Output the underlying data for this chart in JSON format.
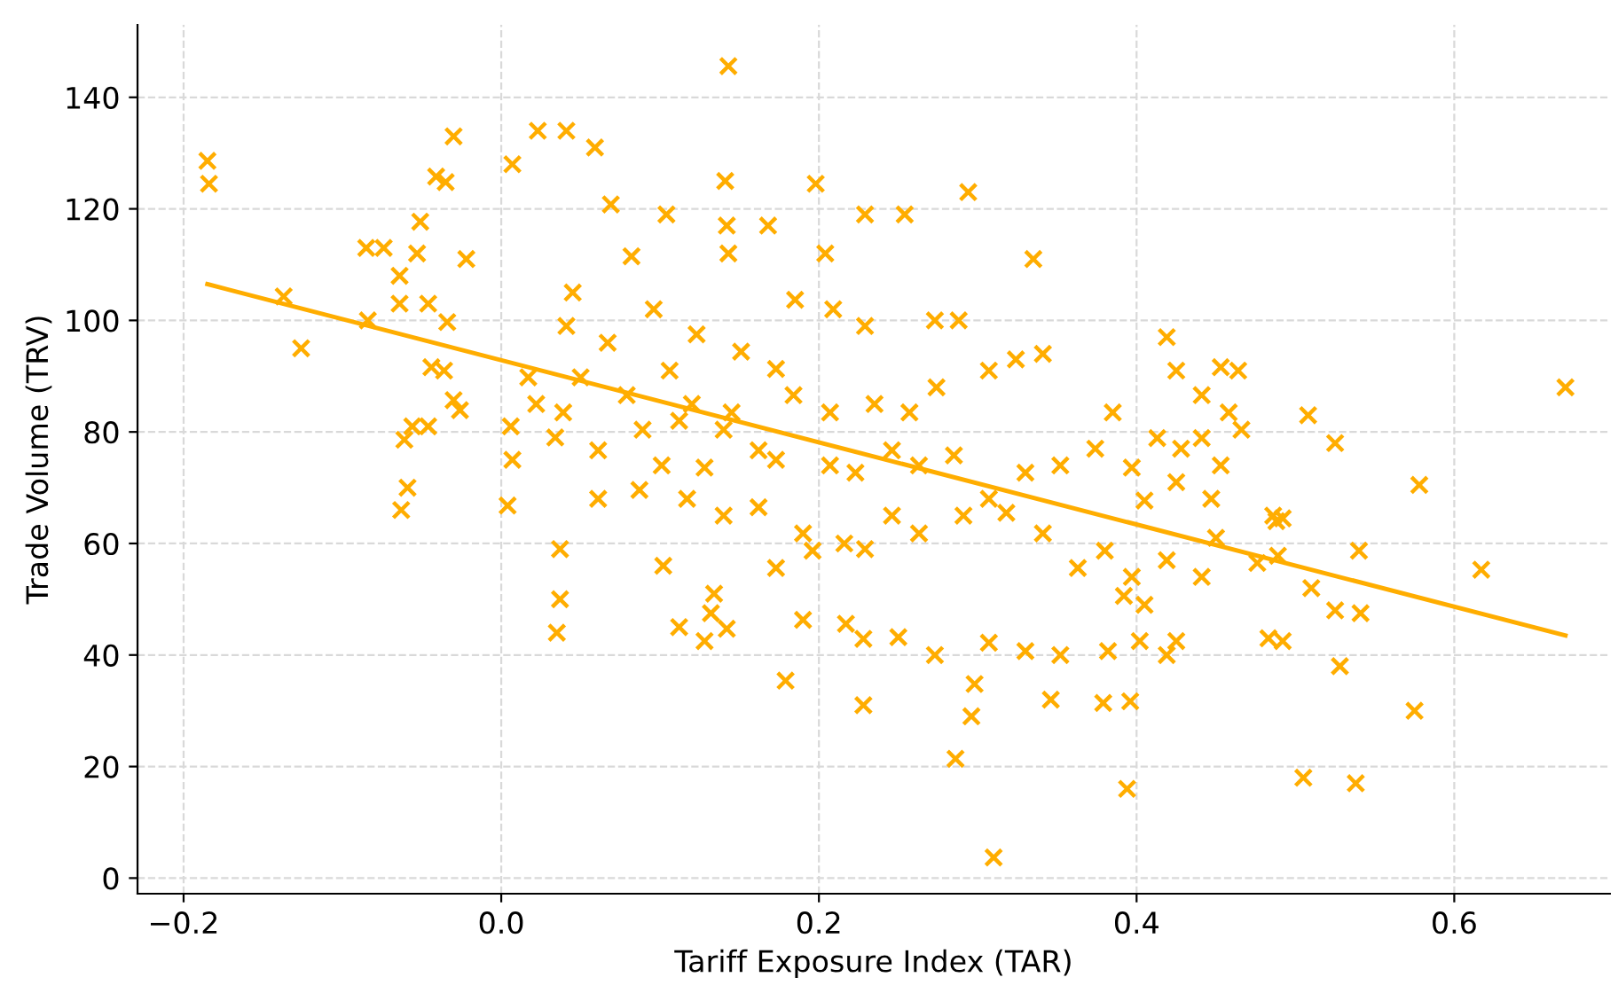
{
  "chart_data": {
    "type": "scatter",
    "xlabel": "Tariff Exposure Index (TAR)",
    "ylabel": "Trade Volume (TRV)",
    "xlim": [
      -0.229,
      0.698
    ],
    "ylim": [
      -2.8,
      153
    ],
    "xticks": [
      {
        "value": -0.2,
        "label": "−0.2"
      },
      {
        "value": 0.0,
        "label": "0.0"
      },
      {
        "value": 0.2,
        "label": "0.2"
      },
      {
        "value": 0.4,
        "label": "0.4"
      },
      {
        "value": 0.6,
        "label": "0.6"
      }
    ],
    "yticks": [
      0,
      20,
      40,
      60,
      80,
      100,
      120,
      140
    ],
    "grid": true,
    "series": [
      {
        "color": "#ffad00",
        "marker": "cross",
        "x": [
          -0.185,
          -0.184,
          -0.137,
          -0.126,
          -0.084,
          -0.085,
          -0.074,
          -0.041,
          -0.035,
          -0.03,
          -0.051,
          -0.053,
          -0.064,
          -0.046,
          -0.022,
          -0.064,
          -0.034,
          -0.044,
          -0.036,
          -0.03,
          -0.026,
          -0.056,
          -0.046,
          -0.061,
          -0.059,
          -0.063,
          0.007,
          0.023,
          0.041,
          0.059,
          0.006,
          0.007,
          0.004,
          0.037,
          0.037,
          0.035,
          0.069,
          0.082,
          0.096,
          0.106,
          0.12,
          0.143,
          0.142,
          0.141,
          0.143,
          0.104,
          0.168,
          0.198,
          0.294,
          0.335,
          0.204,
          0.229,
          0.254,
          0.209,
          0.185,
          0.229,
          0.273,
          0.288,
          0.14,
          0.162,
          0.184,
          0.207,
          0.235,
          0.257,
          0.274,
          0.307,
          0.324,
          0.341,
          0.128,
          0.173,
          0.207,
          0.223,
          0.246,
          0.263,
          0.285,
          0.307,
          0.33,
          0.352,
          0.374,
          0.385,
          0.397,
          0.413,
          0.428,
          0.441,
          0.117,
          0.14,
          0.162,
          0.19,
          0.216,
          0.229,
          0.246,
          0.263,
          0.291,
          0.318,
          0.341,
          0.363,
          0.38,
          0.397,
          0.419,
          0.441,
          0.196,
          0.173,
          0.134,
          0.132,
          0.142,
          0.128,
          0.112,
          0.102,
          0.19,
          0.217,
          0.228,
          0.25,
          0.273,
          0.307,
          0.33,
          0.352,
          0.382,
          0.402,
          0.419,
          0.425,
          0.179,
          0.228,
          0.298,
          0.296,
          0.286,
          0.31,
          0.394,
          0.346,
          0.379,
          0.396,
          0.425,
          0.453,
          0.441,
          0.425,
          0.419,
          0.453,
          0.464,
          0.458,
          0.466,
          0.447,
          0.476,
          0.486,
          0.492,
          0.508,
          0.525,
          0.488,
          0.483,
          0.492,
          0.525,
          0.528,
          0.51,
          0.54,
          0.541,
          0.505,
          0.538,
          0.575,
          0.578,
          0.617,
          0.67,
          0.489,
          0.45,
          0.405,
          0.405,
          0.392,
          0.041,
          0.045,
          0.067,
          0.079,
          0.089,
          0.061,
          0.101,
          0.061,
          0.087,
          0.017,
          0.022,
          0.034,
          0.039,
          0.05,
          0.123,
          0.151,
          0.173,
          0.145,
          0.112
        ],
        "values": [
          128.6,
          124.5,
          104.3,
          95,
          100,
          113,
          113,
          125.8,
          124.8,
          133,
          117.7,
          112,
          108,
          103,
          111,
          103,
          99.7,
          91.6,
          91,
          85.7,
          83.9,
          81,
          81,
          78.6,
          70,
          66,
          128,
          134,
          134,
          131,
          81,
          75,
          66.8,
          59,
          50,
          44,
          120.8,
          111.5,
          102,
          91,
          85,
          112,
          117,
          125,
          145.6,
          119,
          117,
          124.5,
          123,
          111,
          112,
          119,
          119,
          102,
          103.7,
          99,
          100,
          100,
          80.4,
          76.7,
          86.6,
          83.5,
          85,
          83.5,
          88,
          91,
          93,
          94,
          73.6,
          75,
          74,
          72.7,
          76.7,
          74,
          75.8,
          68,
          72.7,
          74,
          77,
          83.5,
          73.6,
          78.9,
          77,
          78.9,
          68,
          65,
          66.5,
          61.8,
          60,
          59,
          65,
          61.8,
          65,
          65.5,
          61.8,
          55.6,
          58.7,
          54,
          57,
          54,
          58.7,
          55.6,
          51,
          47.5,
          44.7,
          42.5,
          45,
          56,
          46.3,
          45.6,
          42.9,
          43.2,
          40,
          42.2,
          40.7,
          40,
          40.7,
          42.5,
          40,
          42.5,
          35.4,
          31,
          34.8,
          29,
          21.4,
          3.7,
          16,
          32,
          31.4,
          31.7,
          71,
          74,
          86.6,
          91,
          97,
          91.6,
          91,
          83.5,
          80.4,
          68,
          56.5,
          65,
          64.5,
          83,
          78,
          64,
          43,
          42.5,
          48,
          38,
          52,
          58.7,
          47.5,
          18,
          17,
          30,
          70.5,
          55.3,
          88,
          57.8,
          61,
          67.7,
          49,
          50.6,
          99,
          105,
          96,
          86.6,
          80.4,
          76.7,
          74,
          68,
          69.6,
          89.8,
          85,
          79,
          83.5,
          89.8,
          97.5,
          94.4,
          91.3,
          83.5,
          82
        ]
      },
      {
        "type": "line",
        "marker": "none",
        "color": "#ffad00",
        "x": [
          -0.185,
          0.67
        ],
        "values": [
          106.5,
          43.5
        ]
      }
    ]
  }
}
